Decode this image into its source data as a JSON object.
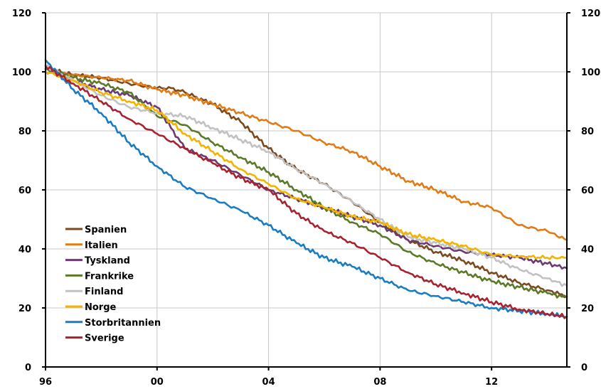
{
  "chart_data": {
    "type": "line",
    "title": "",
    "xlabel": "",
    "ylabel": "",
    "xlim": [
      1996,
      2014.7
    ],
    "ylim": [
      0,
      120
    ],
    "x_ticks": [
      {
        "value": 1996,
        "label": "96"
      },
      {
        "value": 2000,
        "label": "00"
      },
      {
        "value": 2004,
        "label": "04"
      },
      {
        "value": 2008,
        "label": "08"
      },
      {
        "value": 2012,
        "label": "12"
      }
    ],
    "y_ticks": [
      0,
      20,
      40,
      60,
      80,
      100,
      120
    ],
    "grid": true,
    "legend_position": "bottom-left",
    "series": [
      {
        "name": "Spanien",
        "color": "#7b4a1e",
        "x": [
          1996,
          1997,
          1998,
          1999,
          2000,
          2000.5,
          2001,
          2002,
          2003,
          2004,
          2005,
          2006,
          2007,
          2008,
          2009,
          2010,
          2011,
          2012,
          2013,
          2014,
          2014.7
        ],
        "y": [
          101,
          99,
          98,
          96,
          94.5,
          94.5,
          93,
          89,
          83,
          74,
          67,
          62,
          56,
          49,
          43,
          39,
          36,
          32,
          28.5,
          26,
          24
        ]
      },
      {
        "name": "Italien",
        "color": "#e07b15",
        "x": [
          1996,
          1997,
          1998,
          1999,
          2000,
          2001,
          2002,
          2003,
          2004,
          2005,
          2006,
          2007,
          2008,
          2009,
          2010,
          2011,
          2012,
          2013,
          2014,
          2014.7
        ],
        "y": [
          100,
          99,
          98,
          97,
          94,
          92,
          89,
          86,
          83,
          80,
          76,
          73,
          68,
          63,
          60,
          56,
          54,
          48,
          46,
          43
        ]
      },
      {
        "name": "Tyskland",
        "color": "#6b3a72",
        "x": [
          1996,
          1997,
          1998,
          1999,
          2000,
          2001,
          2002,
          2003,
          2004,
          2005,
          2006,
          2007,
          2008,
          2009,
          2010,
          2011,
          2012,
          2013,
          2014,
          2014.7
        ],
        "y": [
          101,
          97,
          94,
          92,
          88,
          74,
          70,
          65,
          60,
          57,
          54,
          51,
          48,
          43,
          41,
          39,
          38,
          37,
          35,
          33.5
        ]
      },
      {
        "name": "Frankrike",
        "color": "#5a7a28",
        "x": [
          1996,
          1997,
          1998,
          1999,
          2000,
          2001,
          2002,
          2003,
          2004,
          2005,
          2006,
          2007,
          2008,
          2009,
          2010,
          2011,
          2012,
          2013,
          2014,
          2014.7
        ],
        "y": [
          101,
          98,
          96,
          93,
          85,
          82,
          76,
          71,
          66,
          60,
          54,
          49,
          45,
          39,
          35,
          32,
          29,
          27,
          25,
          23.5
        ]
      },
      {
        "name": "Finland",
        "color": "#c2c2c2",
        "x": [
          1996,
          1997,
          1998,
          1999,
          2000,
          2001,
          2002,
          2003,
          2004,
          2005,
          2006,
          2007,
          2008,
          2009,
          2010,
          2011,
          2012,
          2013,
          2014,
          2014.7
        ],
        "y": [
          102,
          97,
          92,
          88,
          86,
          85,
          81,
          77,
          73,
          67,
          62,
          56,
          50,
          44,
          42,
          40,
          37,
          33,
          30,
          27.5
        ]
      },
      {
        "name": "Norge",
        "color": "#f2b400",
        "x": [
          1996,
          1997,
          1998,
          1999,
          2000,
          2001,
          2002,
          2003,
          2004,
          2005,
          2006,
          2007,
          2008,
          2009,
          2010,
          2011,
          2012,
          2013,
          2014,
          2014.7
        ],
        "y": [
          100,
          97,
          93,
          90,
          87,
          79,
          73,
          67,
          62,
          57,
          54,
          51,
          49,
          45,
          43,
          41,
          38,
          37.5,
          37,
          37
        ]
      },
      {
        "name": "Storbritannien",
        "color": "#1a7cc1",
        "x": [
          1996,
          1997,
          1998,
          1999,
          2000,
          2001,
          2002,
          2003,
          2004,
          2005,
          2006,
          2007,
          2008,
          2009,
          2010,
          2011,
          2012,
          2013,
          2014,
          2014.7
        ],
        "y": [
          104,
          94,
          86,
          76,
          68,
          61,
          57,
          53,
          48,
          42,
          37,
          34,
          30,
          26,
          24,
          22,
          20,
          19,
          18,
          17
        ]
      },
      {
        "name": "Sverige",
        "color": "#a8232f",
        "x": [
          1996,
          1997,
          1998,
          1999,
          2000,
          2001,
          2002,
          2003,
          2004,
          2005,
          2006,
          2007,
          2008,
          2009,
          2010,
          2011,
          2012,
          2013,
          2014,
          2014.7
        ],
        "y": [
          102,
          96,
          90,
          84,
          79,
          74,
          69,
          64,
          60,
          52,
          46,
          42,
          37,
          32,
          28,
          25,
          22,
          19.5,
          18,
          17
        ]
      }
    ]
  }
}
